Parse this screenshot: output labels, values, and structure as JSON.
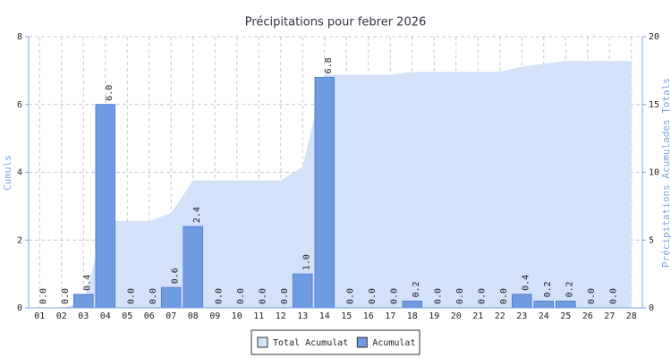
{
  "chart_data": {
    "type": "bar",
    "title": "Précipitations pour febrer 2026",
    "y_label": "Cumuls",
    "y2_label": "Précipitations Acumulades Totals",
    "categories": [
      "01",
      "02",
      "03",
      "04",
      "05",
      "06",
      "07",
      "08",
      "09",
      "10",
      "11",
      "12",
      "13",
      "14",
      "15",
      "16",
      "17",
      "18",
      "19",
      "20",
      "21",
      "22",
      "23",
      "24",
      "25",
      "26",
      "27",
      "28"
    ],
    "series": [
      {
        "name": "Total Acumulat",
        "type": "area",
        "axis": "y2",
        "color": "#d3e1f9",
        "values": [
          0,
          0,
          0.4,
          6.4,
          6.4,
          6.4,
          7.0,
          9.4,
          9.4,
          9.4,
          9.4,
          9.4,
          10.4,
          17.2,
          17.2,
          17.2,
          17.2,
          17.4,
          17.4,
          17.4,
          17.4,
          17.4,
          17.8,
          18.0,
          18.2,
          18.2,
          18.2,
          18.2
        ]
      },
      {
        "name": "Acumulat",
        "type": "bar",
        "color": "#6f9be0",
        "values": [
          0,
          0,
          0.4,
          6,
          0,
          0,
          0.6,
          2.4,
          0,
          0,
          0,
          0,
          1,
          6.8,
          0,
          0,
          0,
          0.2,
          0,
          0,
          0,
          0,
          0.4,
          0.2,
          0.2,
          0,
          0,
          null
        ],
        "value_labels": [
          "0.0",
          "0.0",
          "0.4",
          "6.0",
          "0.0",
          "0.0",
          "0.6",
          "2.4",
          "0.0",
          "0.0",
          "0.0",
          "0.0",
          "1.0",
          "6.8",
          "0.0",
          "0.0",
          "0.0",
          "0.2",
          "0.0",
          "0.0",
          "0.0",
          "0.0",
          "0.4",
          "0.2",
          "0.2",
          "0.0",
          "0.0",
          null
        ]
      }
    ],
    "ylim": [
      0,
      8
    ],
    "yticks": [
      0,
      2,
      4,
      6,
      8
    ],
    "y2lim": [
      0,
      20
    ],
    "y2ticks": [
      0,
      5,
      10,
      15,
      20
    ],
    "grid": true,
    "legend": "bottom"
  }
}
